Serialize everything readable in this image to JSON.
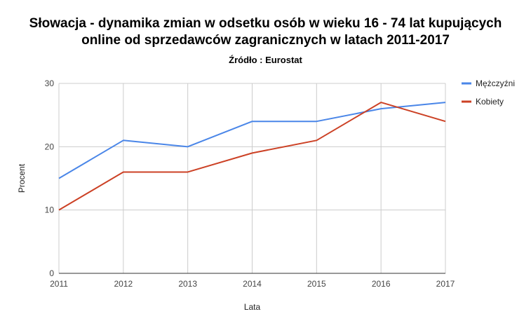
{
  "chart_data": {
    "type": "line",
    "title_lines": [
      "Słowacja - dynamika zmian w odsetku osób w wieku 16 - 74 lat kupujących",
      "online od sprzedawców zagranicznych w latach  2011-2017"
    ],
    "subtitle": "Źródło : Eurostat",
    "xlabel": "Lata",
    "ylabel": "Procent",
    "x": [
      "2011",
      "2012",
      "2013",
      "2014",
      "2015",
      "2016",
      "2017"
    ],
    "ylim": [
      0,
      30
    ],
    "yticks": [
      0,
      10,
      20,
      30
    ],
    "grid": true,
    "legend_position": "right",
    "series": [
      {
        "name": "Mężczyźni",
        "color": "#4a86e8",
        "values": [
          15,
          21,
          20,
          24,
          24,
          26,
          27
        ]
      },
      {
        "name": "Kobiety",
        "color": "#cc4125",
        "values": [
          10,
          16,
          16,
          19,
          21,
          27,
          24
        ]
      }
    ]
  }
}
